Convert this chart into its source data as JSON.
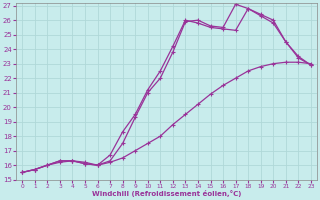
{
  "title": "",
  "xlabel": "Windchill (Refroidissement éolien,°C)",
  "bg_color": "#c8ecec",
  "grid_color": "#b0d8d8",
  "line_color": "#993399",
  "xlim": [
    -0.5,
    23.5
  ],
  "ylim": [
    15,
    27
  ],
  "xticks": [
    0,
    1,
    2,
    3,
    4,
    5,
    6,
    7,
    8,
    9,
    10,
    11,
    12,
    13,
    14,
    15,
    16,
    17,
    18,
    19,
    20,
    21,
    22,
    23
  ],
  "yticks": [
    15,
    16,
    17,
    18,
    19,
    20,
    21,
    22,
    23,
    24,
    25,
    26,
    27
  ],
  "line1_x": [
    0,
    1,
    2,
    3,
    4,
    5,
    6,
    7,
    8,
    9,
    10,
    11,
    12,
    13,
    14,
    15,
    16,
    17,
    18,
    19,
    20,
    21,
    22,
    23
  ],
  "line1_y": [
    15.5,
    15.7,
    16.0,
    16.2,
    16.3,
    16.2,
    16.0,
    16.2,
    16.5,
    17.0,
    17.5,
    18.0,
    18.8,
    19.5,
    20.2,
    20.9,
    21.5,
    22.0,
    22.5,
    22.8,
    23.0,
    23.1,
    23.1,
    23.0
  ],
  "line2_x": [
    0,
    1,
    2,
    3,
    4,
    5,
    6,
    7,
    8,
    9,
    10,
    11,
    12,
    13,
    14,
    15,
    16,
    17,
    18,
    19,
    20,
    21,
    22,
    23
  ],
  "line2_y": [
    15.5,
    15.7,
    16.0,
    16.3,
    16.3,
    16.1,
    16.0,
    16.7,
    18.3,
    19.5,
    21.2,
    22.5,
    24.2,
    26.0,
    25.8,
    25.5,
    25.4,
    25.3,
    26.8,
    26.4,
    26.0,
    24.5,
    23.5,
    22.9
  ],
  "line3_x": [
    0,
    1,
    2,
    3,
    4,
    5,
    6,
    7,
    8,
    9,
    10,
    11,
    12,
    13,
    14,
    15,
    16,
    17,
    18,
    19,
    20,
    21,
    22,
    23
  ],
  "line3_y": [
    15.5,
    15.7,
    16.0,
    16.3,
    16.3,
    16.1,
    16.0,
    16.3,
    17.5,
    19.3,
    21.0,
    22.0,
    23.8,
    25.9,
    26.0,
    25.6,
    25.5,
    27.1,
    26.8,
    26.3,
    25.8,
    24.5,
    23.4,
    22.9
  ]
}
